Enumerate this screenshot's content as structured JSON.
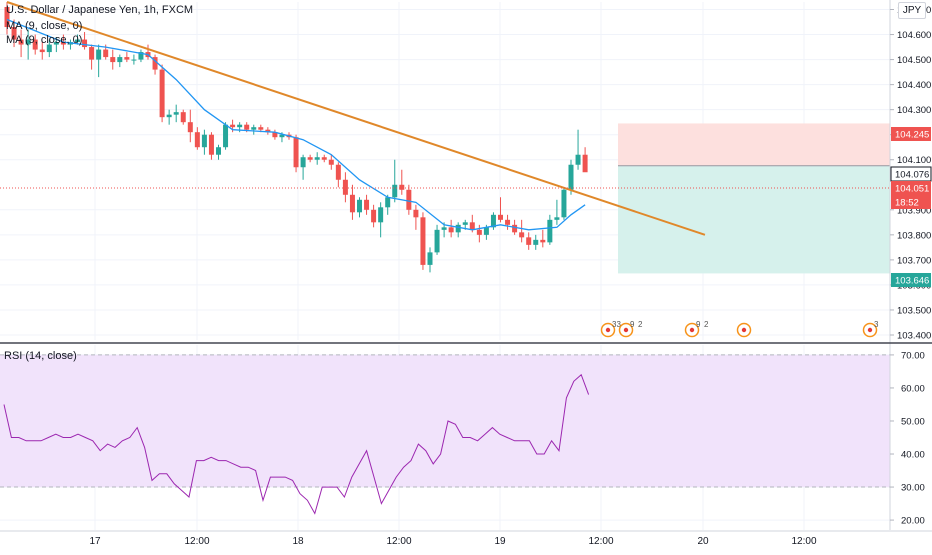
{
  "header": {
    "symbol": "U.S. Dollar / Japanese Yen, 1h, FXCM",
    "indicators": [
      "MA (9, close, 0)",
      "MA (9, close, 0)"
    ],
    "currency": "JPY"
  },
  "rsi_legend": "RSI (14, close)",
  "colors": {
    "bull": "#26a69a",
    "bear": "#ef5350",
    "ma": "#2196f3",
    "trendline": "#e0882a",
    "rsi": "#9c27b0",
    "rsi_band": "#f1e3fb",
    "target_zone": "#d6f1ec",
    "stop_zone": "#fde0de"
  },
  "price_labels": {
    "stop": "104.245",
    "entry": "104.076",
    "last": "104.051",
    "countdown": "18:52",
    "target": "103.646"
  },
  "chart_data": [
    {
      "type": "candlestick",
      "yaxis_ticks": [
        "104.700",
        "104.600",
        "104.500",
        "104.400",
        "104.300",
        "104.200",
        "104.100",
        "103.900",
        "103.800",
        "103.700",
        "103.600",
        "103.500",
        "103.400"
      ],
      "ylim": [
        103.38,
        104.73
      ],
      "xaxis_ticks": [
        "17",
        "12:00",
        "18",
        "12:00",
        "19",
        "12:00",
        "20",
        "12:00"
      ],
      "candles": [
        [
          104.71,
          104.73,
          104.6,
          104.63
        ],
        [
          104.63,
          104.66,
          104.55,
          104.58
        ],
        [
          104.58,
          104.62,
          104.51,
          104.56
        ],
        [
          104.56,
          104.62,
          104.5,
          104.58
        ],
        [
          104.58,
          104.6,
          104.52,
          104.54
        ],
        [
          104.54,
          104.57,
          104.5,
          104.53
        ],
        [
          104.53,
          104.58,
          104.51,
          104.56
        ],
        [
          104.56,
          104.59,
          104.53,
          104.57
        ],
        [
          104.57,
          104.6,
          104.54,
          104.56
        ],
        [
          104.56,
          104.58,
          104.54,
          104.57
        ],
        [
          104.57,
          104.6,
          104.56,
          104.58
        ],
        [
          104.58,
          104.61,
          104.54,
          104.55
        ],
        [
          104.55,
          104.56,
          104.46,
          104.5
        ],
        [
          104.5,
          104.56,
          104.43,
          104.54
        ],
        [
          104.54,
          104.56,
          104.5,
          104.51
        ],
        [
          104.51,
          104.54,
          104.46,
          104.49
        ],
        [
          104.49,
          104.52,
          104.47,
          104.51
        ],
        [
          104.51,
          104.53,
          104.49,
          104.5
        ],
        [
          104.5,
          104.52,
          104.48,
          104.5
        ],
        [
          104.5,
          104.54,
          104.49,
          104.53
        ],
        [
          104.53,
          104.56,
          104.5,
          104.51
        ],
        [
          104.51,
          104.52,
          104.44,
          104.46
        ],
        [
          104.46,
          104.48,
          104.25,
          104.27
        ],
        [
          104.27,
          104.3,
          104.24,
          104.28
        ],
        [
          104.28,
          104.32,
          104.25,
          104.29
        ],
        [
          104.29,
          104.3,
          104.24,
          104.25
        ],
        [
          104.25,
          104.3,
          104.17,
          104.21
        ],
        [
          104.21,
          104.23,
          104.14,
          104.15
        ],
        [
          104.15,
          104.22,
          104.12,
          104.2
        ],
        [
          104.2,
          104.21,
          104.1,
          104.12
        ],
        [
          104.12,
          104.16,
          104.1,
          104.15
        ],
        [
          104.15,
          104.25,
          104.14,
          104.24
        ],
        [
          104.24,
          104.26,
          104.21,
          104.23
        ],
        [
          104.23,
          104.25,
          104.21,
          104.24
        ],
        [
          104.24,
          104.25,
          104.21,
          104.22
        ],
        [
          104.22,
          104.24,
          104.2,
          104.23
        ],
        [
          104.23,
          104.24,
          104.21,
          104.22
        ],
        [
          104.22,
          104.23,
          104.2,
          104.21
        ],
        [
          104.21,
          104.22,
          104.18,
          104.19
        ],
        [
          104.19,
          104.21,
          104.17,
          104.2
        ],
        [
          104.2,
          104.21,
          104.18,
          104.19
        ],
        [
          104.19,
          104.2,
          104.05,
          104.07
        ],
        [
          104.07,
          104.12,
          104.02,
          104.11
        ],
        [
          104.11,
          104.12,
          104.09,
          104.1
        ],
        [
          104.1,
          104.13,
          104.08,
          104.11
        ],
        [
          104.11,
          104.12,
          104.09,
          104.1
        ],
        [
          104.1,
          104.12,
          104.06,
          104.08
        ],
        [
          104.08,
          104.09,
          103.99,
          104.02
        ],
        [
          104.02,
          104.05,
          103.93,
          103.96
        ],
        [
          103.96,
          104.0,
          103.86,
          103.89
        ],
        [
          103.89,
          103.95,
          103.87,
          103.94
        ],
        [
          103.94,
          103.96,
          103.88,
          103.9
        ],
        [
          103.9,
          103.92,
          103.83,
          103.85
        ],
        [
          103.85,
          103.93,
          103.79,
          103.91
        ],
        [
          103.91,
          103.96,
          103.88,
          103.95
        ],
        [
          103.95,
          104.1,
          103.93,
          104.0
        ],
        [
          104.0,
          104.06,
          103.96,
          103.98
        ],
        [
          103.98,
          104.0,
          103.88,
          103.9
        ],
        [
          103.9,
          103.92,
          103.82,
          103.87
        ],
        [
          103.87,
          103.89,
          103.66,
          103.68
        ],
        [
          103.68,
          103.75,
          103.65,
          103.73
        ],
        [
          103.73,
          103.84,
          103.72,
          103.82
        ],
        [
          103.82,
          103.85,
          103.79,
          103.83
        ],
        [
          103.83,
          103.86,
          103.79,
          103.81
        ],
        [
          103.81,
          103.85,
          103.79,
          103.84
        ],
        [
          103.84,
          103.86,
          103.82,
          103.85
        ],
        [
          103.85,
          103.88,
          103.81,
          103.82
        ],
        [
          103.82,
          103.84,
          103.77,
          103.8
        ],
        [
          103.8,
          103.84,
          103.78,
          103.83
        ],
        [
          103.83,
          103.89,
          103.82,
          103.88
        ],
        [
          103.88,
          103.95,
          103.85,
          103.86
        ],
        [
          103.86,
          103.88,
          103.82,
          103.84
        ],
        [
          103.84,
          103.86,
          103.8,
          103.81
        ],
        [
          103.81,
          103.86,
          103.77,
          103.79
        ],
        [
          103.79,
          103.81,
          103.74,
          103.76
        ],
        [
          103.76,
          103.8,
          103.74,
          103.78
        ],
        [
          103.78,
          103.82,
          103.75,
          103.77
        ],
        [
          103.77,
          103.88,
          103.76,
          103.86
        ],
        [
          103.86,
          103.94,
          103.84,
          103.87
        ],
        [
          103.87,
          103.99,
          103.86,
          103.98
        ],
        [
          103.98,
          104.1,
          103.96,
          104.08
        ],
        [
          104.08,
          104.22,
          104.06,
          104.12
        ],
        [
          104.12,
          104.15,
          104.06,
          104.05
        ]
      ],
      "ma": [
        {
          "i": 0,
          "v": 104.66
        },
        {
          "i": 8,
          "v": 104.57
        },
        {
          "i": 14,
          "v": 104.55
        },
        {
          "i": 20,
          "v": 104.52
        },
        {
          "i": 24,
          "v": 104.42
        },
        {
          "i": 28,
          "v": 104.3
        },
        {
          "i": 32,
          "v": 104.22
        },
        {
          "i": 38,
          "v": 104.21
        },
        {
          "i": 42,
          "v": 104.18
        },
        {
          "i": 46,
          "v": 104.12
        },
        {
          "i": 50,
          "v": 104.02
        },
        {
          "i": 54,
          "v": 103.95
        },
        {
          "i": 58,
          "v": 103.93
        },
        {
          "i": 62,
          "v": 103.84
        },
        {
          "i": 66,
          "v": 103.82
        },
        {
          "i": 70,
          "v": 103.84
        },
        {
          "i": 74,
          "v": 103.82
        },
        {
          "i": 78,
          "v": 103.83
        },
        {
          "i": 80,
          "v": 103.88
        },
        {
          "i": 82,
          "v": 103.92
        }
      ],
      "trendline": {
        "from": {
          "i": 0,
          "v": 104.73
        },
        "to": {
          "i": 99,
          "v": 103.8
        }
      },
      "position": {
        "entry": 104.076,
        "stop": 104.245,
        "target": 103.646,
        "from_i": 86,
        "to_i": 117
      }
    },
    {
      "type": "line",
      "yaxis_ticks": [
        "70.00",
        "60.00",
        "50.00",
        "40.00",
        "30.00",
        "20.00"
      ],
      "ylim": [
        17,
        73
      ],
      "band": [
        30,
        70
      ],
      "values": [
        55,
        45,
        45,
        44,
        44,
        44,
        45,
        46,
        45,
        45,
        46,
        45,
        44,
        41,
        43,
        42,
        44,
        45,
        48,
        42,
        32,
        34,
        34,
        31,
        29,
        27,
        38,
        38,
        39,
        38,
        38,
        37,
        36,
        36,
        35,
        26,
        33,
        33,
        33,
        32,
        28,
        26,
        22,
        30,
        30,
        30,
        27,
        33,
        37,
        41,
        33,
        25,
        29,
        33,
        36,
        38,
        43,
        41,
        37,
        40,
        50,
        49,
        45,
        45,
        44,
        46,
        48,
        46,
        45,
        44,
        44,
        44,
        40,
        40,
        44,
        41,
        57,
        62,
        64,
        58
      ]
    }
  ],
  "events": {
    "badges": [
      "33",
      "9",
      "2",
      "9",
      "2",
      "3"
    ]
  }
}
